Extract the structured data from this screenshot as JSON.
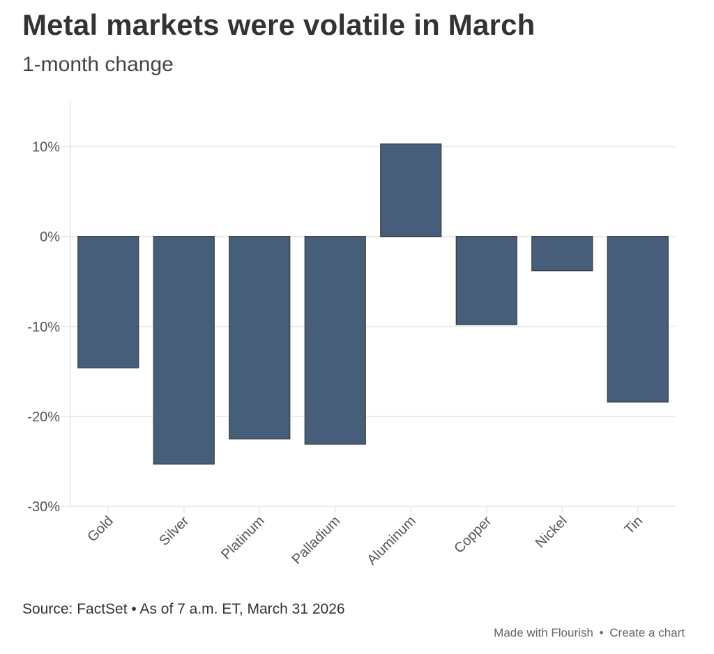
{
  "header": {
    "title": "Metal markets were volatile in March",
    "subtitle": "1-month change"
  },
  "footer": {
    "source": "Source: FactSet • As of 7 a.m. ET, March 31 2026",
    "credit_made_with": "Made with Flourish",
    "credit_separator": "•",
    "credit_create": "Create a chart"
  },
  "colors": {
    "bar_fill": "#475e7b",
    "bar_stroke": "#3a3a3a",
    "grid": "#ebebeb",
    "tick_label": "#555555"
  },
  "chart_data": {
    "type": "bar",
    "title": "Metal markets were volatile in March",
    "subtitle": "1-month change",
    "xlabel": "",
    "ylabel": "",
    "categories": [
      "Gold",
      "Silver",
      "Platinum",
      "Palladium",
      "Aluminum",
      "Copper",
      "Nickel",
      "Tin"
    ],
    "values": [
      -14.6,
      -25.3,
      -22.5,
      -23.1,
      10.3,
      -9.8,
      -3.8,
      -18.4
    ],
    "unit": "%",
    "ylim": [
      -30,
      15
    ],
    "yticks": [
      10,
      0,
      -10,
      -20,
      -30
    ],
    "ytick_labels": [
      "10%",
      "0%",
      "-10%",
      "-20%",
      "-30%"
    ],
    "grid": true,
    "legend": "none"
  }
}
